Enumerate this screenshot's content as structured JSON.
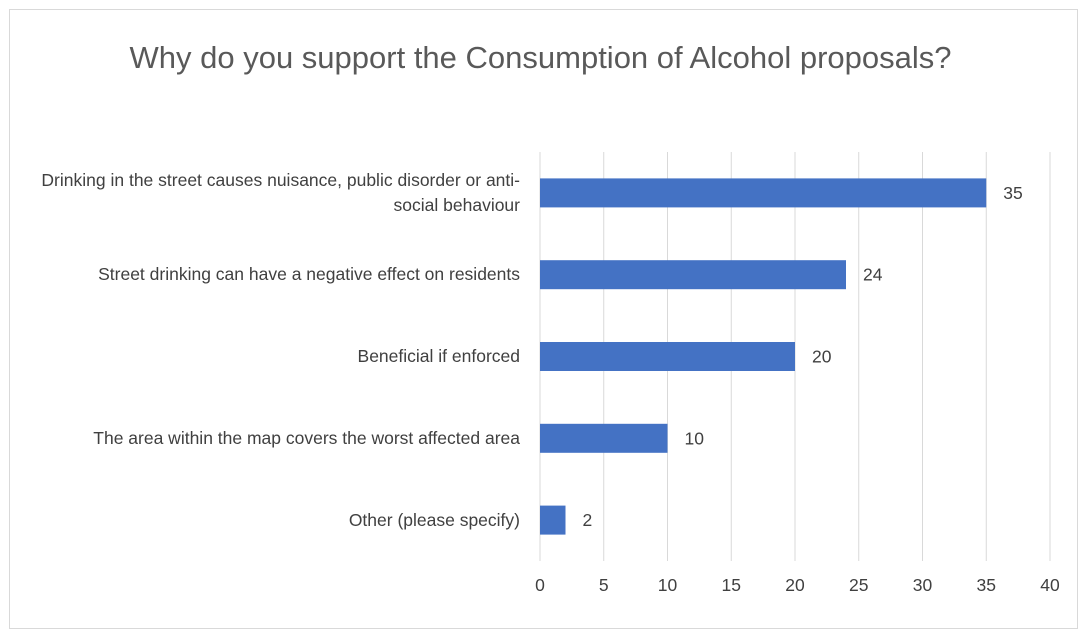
{
  "chart_data": {
    "type": "bar",
    "orientation": "horizontal",
    "title": "Why do you support the Consumption of Alcohol proposals?",
    "xlabel": "",
    "ylabel": "",
    "categories": [
      "Drinking in the street causes nuisance, public disorder or anti-social behaviour",
      "Street drinking can have a negative effect on residents",
      "Beneficial if enforced",
      "The area within the map covers the worst affected area",
      "Other (please specify)"
    ],
    "values": [
      35,
      24,
      20,
      10,
      2
    ],
    "xlim": [
      0,
      40
    ],
    "xticks": [
      0,
      5,
      10,
      15,
      20,
      25,
      30,
      35,
      40
    ],
    "grid": true,
    "data_labels": true,
    "bar_color": "#4472C4",
    "gridline_color": "#d9d9d9",
    "label_color": "#404040"
  }
}
